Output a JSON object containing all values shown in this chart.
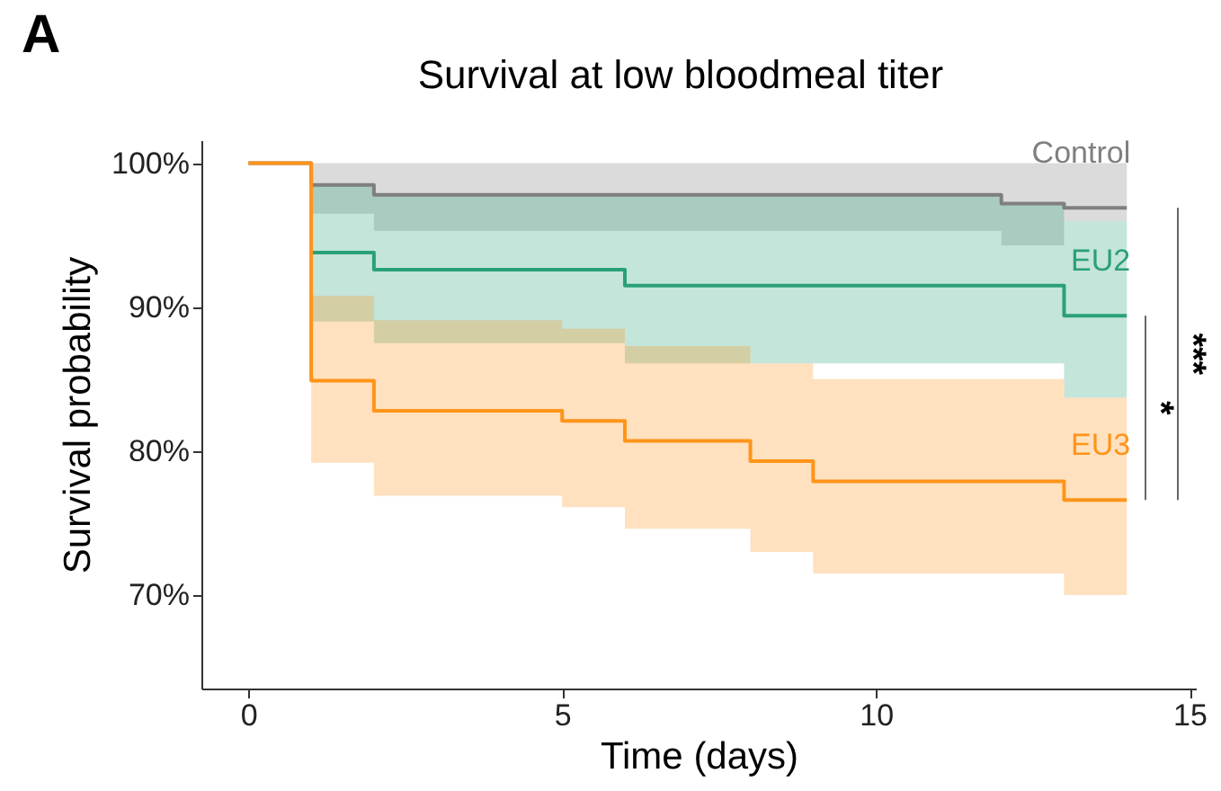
{
  "chart_data": {
    "type": "step",
    "title": "Survival at low bloodmeal titer",
    "xlabel": "Time (days)",
    "ylabel": "Survival probability",
    "annotations": [
      "A",
      "*",
      "***"
    ],
    "xlim": [
      -0.75,
      15.1
    ],
    "xticks": [
      0,
      5,
      10,
      15
    ],
    "ylim": [
      63.5,
      101.6
    ],
    "yticks": [
      {
        "value": 70,
        "label": "70%"
      },
      {
        "value": 80,
        "label": "80%"
      },
      {
        "value": 90,
        "label": "90%"
      },
      {
        "value": 100,
        "label": "100%"
      }
    ],
    "grid": false,
    "legend": false,
    "series": [
      {
        "name": "Control",
        "color": "#7f7f7f",
        "x": [
          0,
          1,
          2,
          12,
          13,
          14
        ],
        "values": [
          100,
          98.5,
          97.8,
          97.2,
          96.9,
          96.9
        ],
        "lower": [
          null,
          96.5,
          95.3,
          94.3,
          96.0,
          96.0
        ],
        "upper": [
          null,
          100,
          100,
          100,
          100,
          100
        ]
      },
      {
        "name": "EU2",
        "color": "#2aa07a",
        "x": [
          1,
          2,
          6,
          12,
          13,
          14
        ],
        "values": [
          93.8,
          92.6,
          91.5,
          91.5,
          89.4,
          89.4
        ],
        "lower": [
          89.0,
          87.5,
          86.1,
          86.1,
          83.7,
          83.7
        ],
        "upper": [
          98.5,
          97.8,
          97.8,
          97.2,
          96.0,
          96.0
        ]
      },
      {
        "name": "EU3",
        "color": "#ff9419",
        "x": [
          0,
          1,
          2,
          5,
          6,
          8,
          9,
          13,
          14
        ],
        "values": [
          100,
          84.9,
          82.8,
          82.1,
          80.7,
          79.3,
          77.9,
          76.6,
          76.6
        ],
        "lower": [
          null,
          79.2,
          76.9,
          76.1,
          74.6,
          73.0,
          71.5,
          70.0,
          70.0
        ],
        "upper": [
          null,
          90.8,
          89.1,
          88.5,
          87.3,
          86.1,
          85.0,
          83.7,
          83.7
        ]
      }
    ]
  }
}
